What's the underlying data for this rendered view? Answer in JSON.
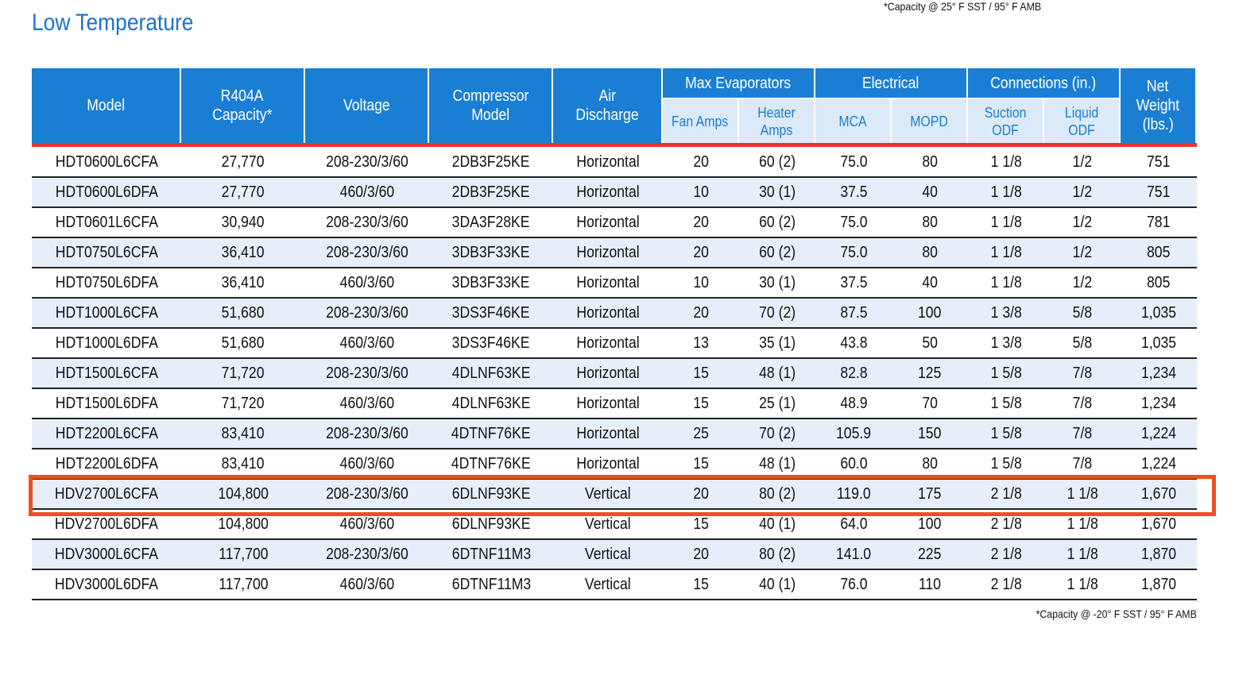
{
  "title": "Low Temperature",
  "note_top": "*Capacity @ 25° F SST / 95° F AMB",
  "note_bottom": "*Capacity @ -20° F SST / 95° F AMB",
  "header": {
    "single_left": [
      [
        "Model"
      ],
      [
        "R404A",
        "Capacity*"
      ],
      [
        "Voltage"
      ],
      [
        "Compressor",
        "Model"
      ],
      [
        "Air",
        "Discharge"
      ]
    ],
    "groups": [
      {
        "name": "Max Evaporators",
        "sub": [
          [
            "Fan Amps"
          ],
          [
            "Heater",
            "Amps"
          ]
        ]
      },
      {
        "name": "Electrical",
        "sub": [
          [
            "MCA"
          ],
          [
            "MOPD"
          ]
        ]
      },
      {
        "name": "Connections (in.)",
        "sub": [
          [
            "Suction",
            "ODF"
          ],
          [
            "Liquid",
            "ODF"
          ]
        ]
      }
    ],
    "single_right": [
      [
        "Net",
        "Weight",
        "(lbs.)"
      ]
    ]
  },
  "rows": [
    [
      "HDT0600L6CFA",
      "27,770",
      "208-230/3/60",
      "2DB3F25KE",
      "Horizontal",
      "20",
      "60 (2)",
      "75.0",
      "80",
      "1 1/8",
      "1/2",
      "751"
    ],
    [
      "HDT0600L6DFA",
      "27,770",
      "460/3/60",
      "2DB3F25KE",
      "Horizontal",
      "10",
      "30 (1)",
      "37.5",
      "40",
      "1 1/8",
      "1/2",
      "751"
    ],
    [
      "HDT0601L6CFA",
      "30,940",
      "208-230/3/60",
      "3DA3F28KE",
      "Horizontal",
      "20",
      "60 (2)",
      "75.0",
      "80",
      "1 1/8",
      "1/2",
      "781"
    ],
    [
      "HDT0750L6CFA",
      "36,410",
      "208-230/3/60",
      "3DB3F33KE",
      "Horizontal",
      "20",
      "60 (2)",
      "75.0",
      "80",
      "1 1/8",
      "1/2",
      "805"
    ],
    [
      "HDT0750L6DFA",
      "36,410",
      "460/3/60",
      "3DB3F33KE",
      "Horizontal",
      "10",
      "30 (1)",
      "37.5",
      "40",
      "1 1/8",
      "1/2",
      "805"
    ],
    [
      "HDT1000L6CFA",
      "51,680",
      "208-230/3/60",
      "3DS3F46KE",
      "Horizontal",
      "20",
      "70 (2)",
      "87.5",
      "100",
      "1 3/8",
      "5/8",
      "1,035"
    ],
    [
      "HDT1000L6DFA",
      "51,680",
      "460/3/60",
      "3DS3F46KE",
      "Horizontal",
      "13",
      "35 (1)",
      "43.8",
      "50",
      "1 3/8",
      "5/8",
      "1,035"
    ],
    [
      "HDT1500L6CFA",
      "71,720",
      "208-230/3/60",
      "4DLNF63KE",
      "Horizontal",
      "15",
      "48 (1)",
      "82.8",
      "125",
      "1 5/8",
      "7/8",
      "1,234"
    ],
    [
      "HDT1500L6DFA",
      "71,720",
      "460/3/60",
      "4DLNF63KE",
      "Horizontal",
      "15",
      "25 (1)",
      "48.9",
      "70",
      "1 5/8",
      "7/8",
      "1,234"
    ],
    [
      "HDT2200L6CFA",
      "83,410",
      "208-230/3/60",
      "4DTNF76KE",
      "Horizontal",
      "25",
      "70 (2)",
      "105.9",
      "150",
      "1 5/8",
      "7/8",
      "1,224"
    ],
    [
      "HDT2200L6DFA",
      "83,410",
      "460/3/60",
      "4DTNF76KE",
      "Horizontal",
      "15",
      "48 (1)",
      "60.0",
      "80",
      "1 5/8",
      "7/8",
      "1,224"
    ],
    [
      "HDV2700L6CFA",
      "104,800",
      "208-230/3/60",
      "6DLNF93KE",
      "Vertical",
      "20",
      "80 (2)",
      "119.0",
      "175",
      "2 1/8",
      "1 1/8",
      "1,670"
    ],
    [
      "HDV2700L6DFA",
      "104,800",
      "460/3/60",
      "6DLNF93KE",
      "Vertical",
      "15",
      "40 (1)",
      "64.0",
      "100",
      "2 1/8",
      "1 1/8",
      "1,670"
    ],
    [
      "HDV3000L6CFA",
      "117,700",
      "208-230/3/60",
      "6DTNF11M3",
      "Vertical",
      "20",
      "80 (2)",
      "141.0",
      "225",
      "2 1/8",
      "1 1/8",
      "1,870"
    ],
    [
      "HDV3000L6DFA",
      "117,700",
      "460/3/60",
      "6DTNF11M3",
      "Vertical",
      "15",
      "40 (1)",
      "76.0",
      "110",
      "2 1/8",
      "1 1/8",
      "1,870"
    ]
  ],
  "highlighted_row": 11
}
